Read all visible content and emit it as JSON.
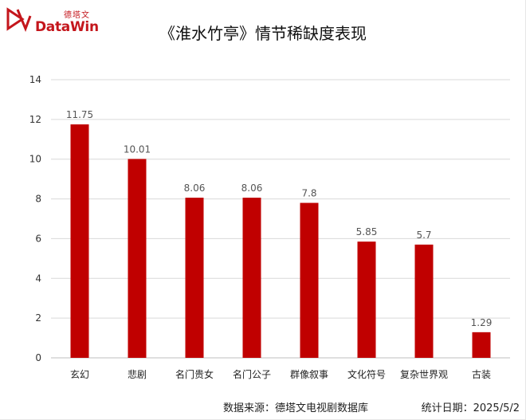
{
  "logo": {
    "cn": "德塔文",
    "en": "DataWin",
    "mark_color": "#c4161c"
  },
  "title": "《淮水竹亭》情节稀缺度表现",
  "footer": {
    "source": "数据来源：德塔文电视剧数据库",
    "date": "统计日期：2025/5/2"
  },
  "chart_data": {
    "type": "bar",
    "title": "《淮水竹亭》情节稀缺度表现",
    "xlabel": "",
    "ylabel": "",
    "categories": [
      "玄幻",
      "悲剧",
      "名门贵女",
      "名门公子",
      "群像叙事",
      "文化符号",
      "复杂世界观",
      "古装"
    ],
    "values": [
      11.75,
      10.01,
      8.06,
      8.06,
      7.8,
      5.85,
      5.7,
      1.29
    ],
    "value_labels": [
      "11.75",
      "10.01",
      "8.06",
      "8.06",
      "7.8",
      "5.85",
      "5.7",
      "1.29"
    ],
    "ylim": [
      0,
      14
    ],
    "yticks": [
      0,
      2,
      4,
      6,
      8,
      10,
      12,
      14
    ],
    "grid": true,
    "legend": "none",
    "bar_color": "#c00000",
    "grid_color": "#d9d9d9"
  }
}
